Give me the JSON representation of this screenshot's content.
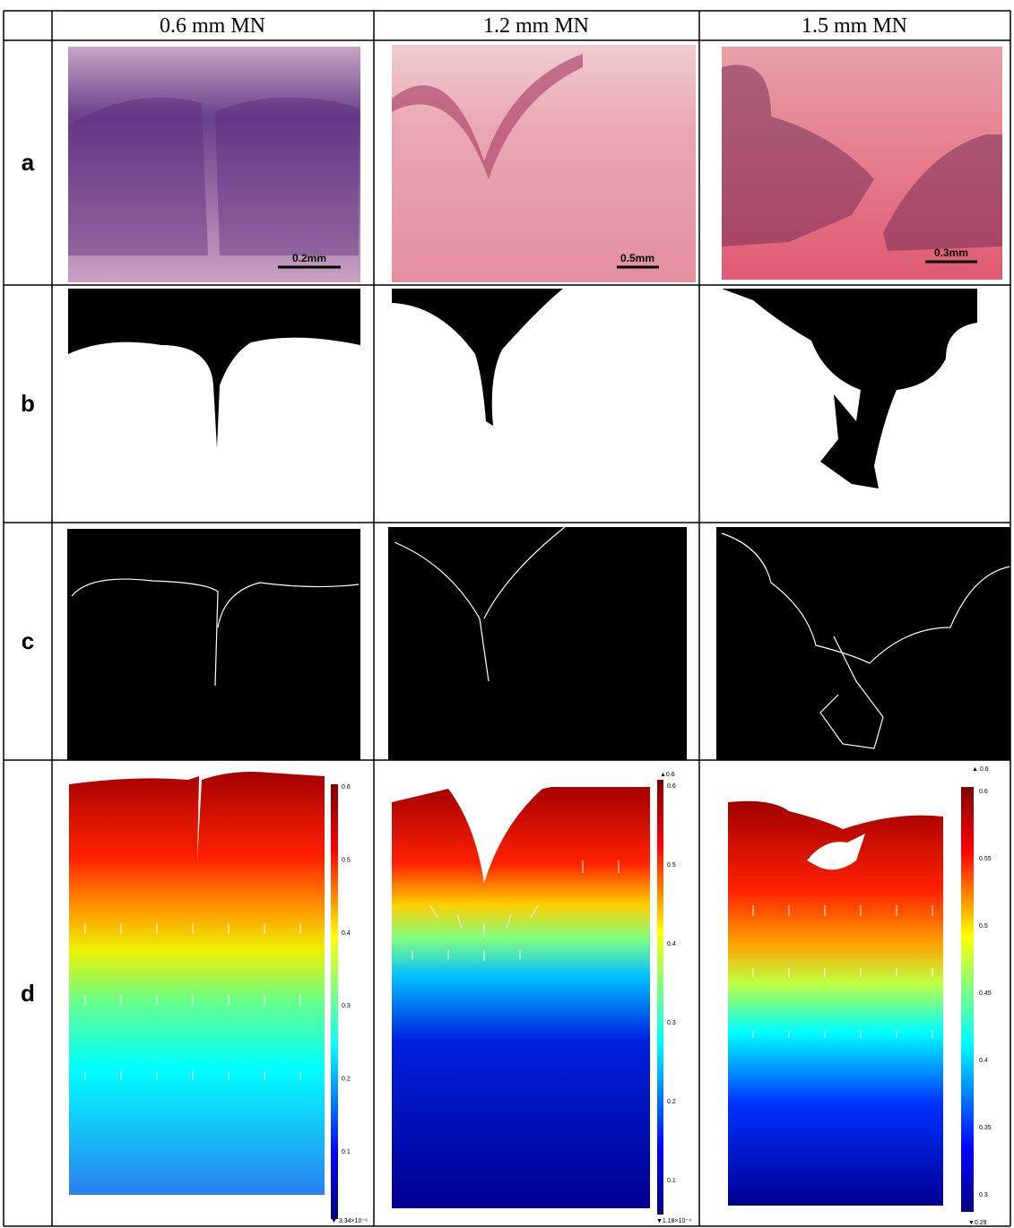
{
  "header": {
    "columns": [
      "0.6 mm MN",
      "1.2 mm MN",
      "1.5 mm MN"
    ]
  },
  "rows": {
    "labels": [
      "a",
      "b",
      "c",
      "d"
    ]
  },
  "scale_bars": [
    "0.2mm",
    "0.5mm",
    "0.3mm"
  ],
  "colorbars": [
    {
      "ticks": [
        0.6,
        0.5,
        0.4,
        0.3,
        0.2,
        0.1
      ],
      "bottom": "▼ 3.34×10⁻⁶"
    },
    {
      "top": "▲0.6",
      "ticks": [
        0.6,
        0.5,
        0.4,
        0.3,
        0.2,
        0.1
      ],
      "bottom": "▼1.18×10⁻⁴"
    },
    {
      "top": "▲ 0.6",
      "ticks": [
        0.6,
        0.55,
        0.5,
        0.45,
        0.4,
        0.35,
        0.3
      ],
      "bottom": "▼0.29"
    }
  ]
}
